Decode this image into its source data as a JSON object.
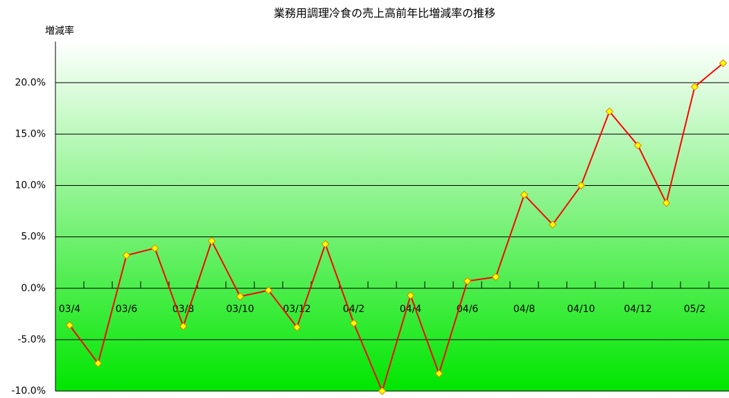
{
  "chart_data": {
    "type": "line",
    "title": "業務用調理冷食の売上高前年比増減率の推移",
    "y_label": "増減率",
    "categories": [
      "03/4",
      null,
      "03/6",
      null,
      "03/8",
      null,
      "03/10",
      null,
      "03/12",
      null,
      "04/2",
      null,
      "04/4",
      null,
      "04/6",
      null,
      "04/8",
      null,
      "04/10",
      null,
      "04/12",
      null,
      "05/2",
      null
    ],
    "series": [
      {
        "name": "増減率",
        "color": "#ff0000",
        "values": [
          -3.6,
          -7.3,
          3.2,
          3.9,
          -3.7,
          4.6,
          -0.8,
          -0.2,
          -3.8,
          4.3,
          -3.4,
          -10.0,
          -0.7,
          -8.3,
          0.7,
          1.1,
          9.1,
          6.2,
          10.0,
          17.2,
          13.9,
          8.3,
          19.6,
          21.9
        ]
      }
    ],
    "ylim": [
      -10,
      24
    ],
    "yticks": [
      {
        "value": -10,
        "label": "-10.0%"
      },
      {
        "value": -5,
        "label": "-5.0%"
      },
      {
        "value": 0,
        "label": "0.0%"
      },
      {
        "value": 5,
        "label": "5.0%"
      },
      {
        "value": 10,
        "label": "10.0%"
      },
      {
        "value": 15,
        "label": "15.0%"
      },
      {
        "value": 20,
        "label": "20.0%"
      }
    ],
    "grid": true,
    "marker_color": "#ffff00"
  }
}
